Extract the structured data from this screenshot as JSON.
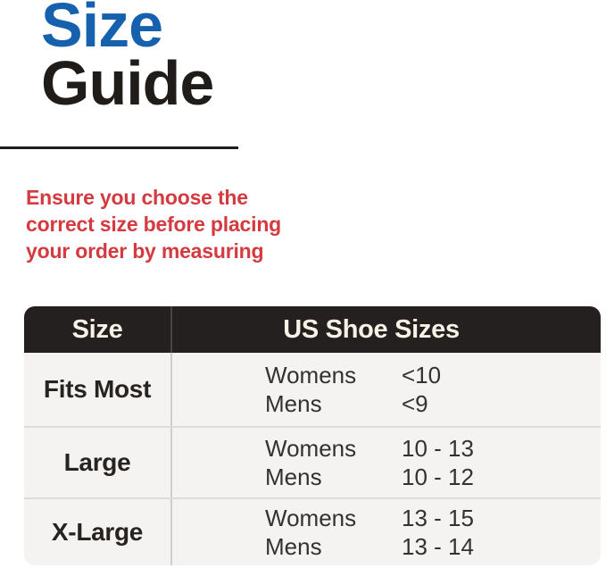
{
  "title": {
    "word1": "Size",
    "word2": "Guide"
  },
  "intro": {
    "lines": [
      "Ensure you choose the",
      "correct size before placing",
      "your order by measuring"
    ]
  },
  "table": {
    "headers": [
      "Size",
      "US Shoe Sizes"
    ],
    "rows": [
      {
        "size": "Fits Most",
        "entries": [
          {
            "label": "Womens",
            "value": "<10"
          },
          {
            "label": "Mens",
            "value": "<9"
          }
        ]
      },
      {
        "size": "Large",
        "entries": [
          {
            "label": "Womens",
            "value": "10 - 13"
          },
          {
            "label": "Mens",
            "value": "10 - 12"
          }
        ]
      },
      {
        "size": "X-Large",
        "entries": [
          {
            "label": "Womens",
            "value": "13 - 15"
          },
          {
            "label": "Mens",
            "value": "13 - 14"
          }
        ]
      }
    ]
  },
  "colors": {
    "accent_blue": "#1661AE",
    "warning_red": "#D43A3F",
    "header_bg": "#242020",
    "header_text": "#F6F2E6",
    "table_body_bg": "#F4F3F1",
    "title_black": "#1F1C1A"
  }
}
